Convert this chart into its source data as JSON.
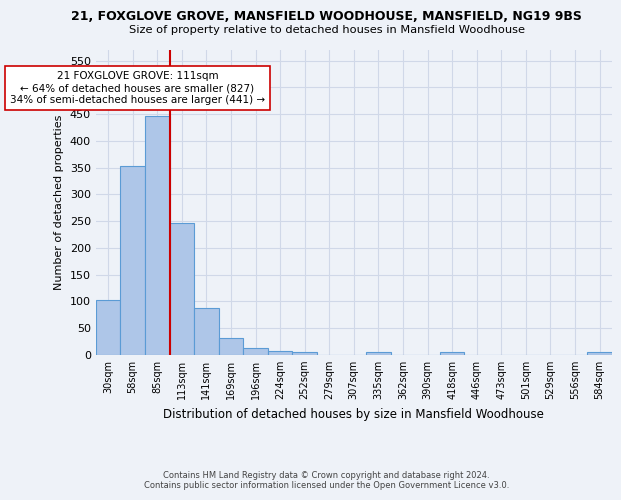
{
  "title": "21, FOXGLOVE GROVE, MANSFIELD WOODHOUSE, MANSFIELD, NG19 9BS",
  "subtitle": "Size of property relative to detached houses in Mansfield Woodhouse",
  "xlabel": "Distribution of detached houses by size in Mansfield Woodhouse",
  "ylabel": "Number of detached properties",
  "footer_line1": "Contains HM Land Registry data © Crown copyright and database right 2024.",
  "footer_line2": "Contains public sector information licensed under the Open Government Licence v3.0.",
  "bin_labels": [
    "30sqm",
    "58sqm",
    "85sqm",
    "113sqm",
    "141sqm",
    "169sqm",
    "196sqm",
    "224sqm",
    "252sqm",
    "279sqm",
    "307sqm",
    "335sqm",
    "362sqm",
    "390sqm",
    "418sqm",
    "446sqm",
    "473sqm",
    "501sqm",
    "529sqm",
    "556sqm",
    "584sqm"
  ],
  "bar_values": [
    103,
    353,
    447,
    246,
    88,
    31,
    14,
    8,
    5,
    0,
    0,
    5,
    0,
    0,
    5,
    0,
    0,
    0,
    0,
    0,
    5
  ],
  "bar_color": "#aec6e8",
  "bar_edge_color": "#5b9bd5",
  "grid_color": "#d0d8e8",
  "background_color": "#eef2f8",
  "red_line_color": "#cc0000",
  "annotation_text": "21 FOXGLOVE GROVE: 111sqm\n← 64% of detached houses are smaller (827)\n34% of semi-detached houses are larger (441) →",
  "annotation_box_color": "white",
  "annotation_box_edge": "#cc0000",
  "ylim": [
    0,
    570
  ],
  "yticks": [
    0,
    50,
    100,
    150,
    200,
    250,
    300,
    350,
    400,
    450,
    500,
    550
  ]
}
